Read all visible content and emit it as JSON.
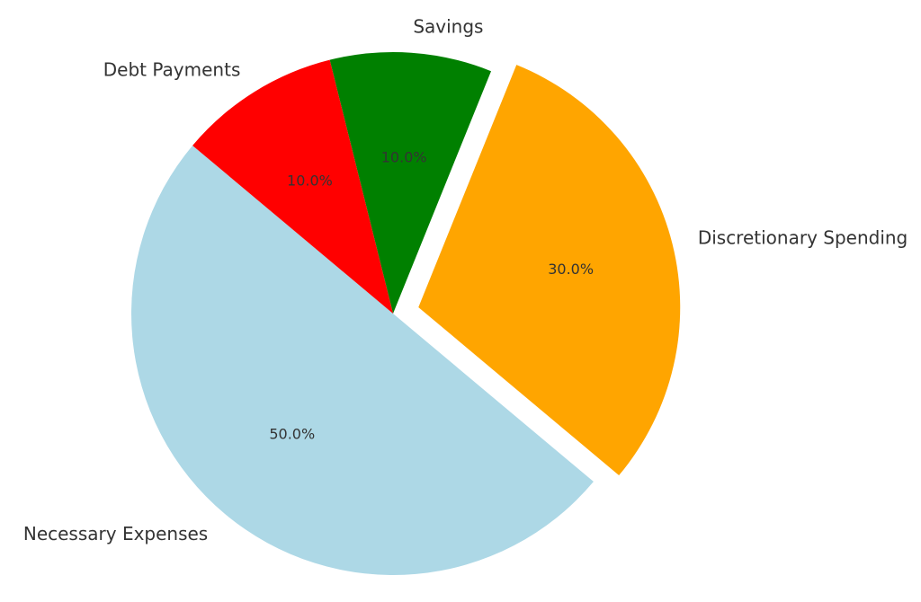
{
  "chart_data": {
    "type": "pie",
    "title": "",
    "legend": "none",
    "start_angle_deg": 140,
    "direction": "counterclockwise",
    "slices": [
      {
        "label": "Necessary Expenses",
        "value": 50,
        "percent_label": "50.0%",
        "color": "#ADD8E6",
        "explode": 0
      },
      {
        "label": "Discretionary Spending",
        "value": 30,
        "percent_label": "30.0%",
        "color": "#FFA500",
        "explode": 0.1
      },
      {
        "label": "Savings",
        "value": 10,
        "percent_label": "10.0%",
        "color": "#008000",
        "explode": 0
      },
      {
        "label": "Debt Payments",
        "value": 10,
        "percent_label": "10.0%",
        "color": "#FF0000",
        "explode": 0
      }
    ]
  }
}
